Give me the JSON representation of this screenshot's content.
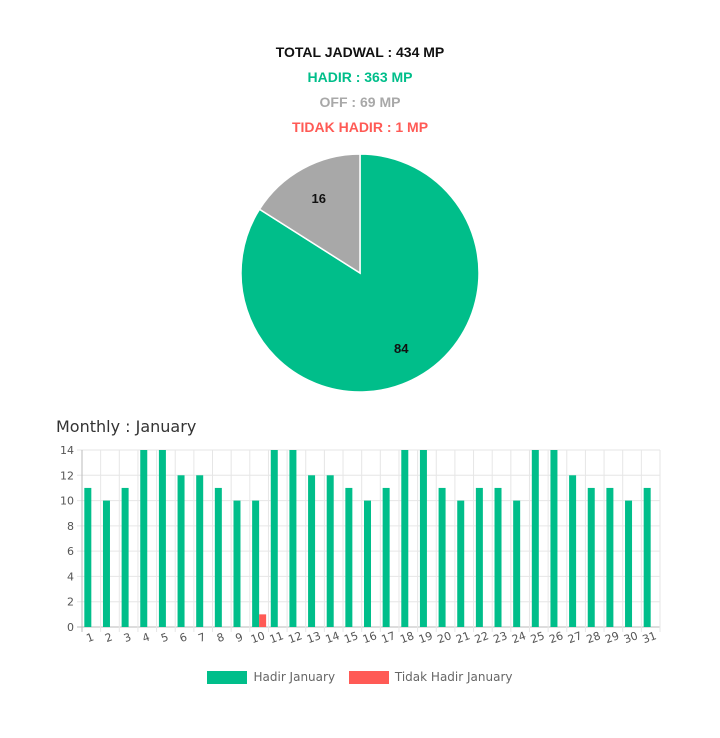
{
  "summary": {
    "total": "TOTAL JADWAL : 434 MP",
    "hadir": "HADIR : 363 MP",
    "off": "OFF : 69 MP",
    "tidak_hadir": "TIDAK HADIR : 1 MP"
  },
  "monthly_title": "Monthly : January",
  "colors": {
    "hadir": "#00be8a",
    "off": "#a8a8a8",
    "tidak_hadir": "#ff5a55"
  },
  "chart_data": [
    {
      "type": "pie",
      "slices": [
        {
          "label": "84",
          "value": 84,
          "color": "#00be8a"
        },
        {
          "label": "16",
          "value": 16,
          "color": "#a8a8a8"
        }
      ]
    },
    {
      "type": "bar",
      "categories": [
        "1",
        "2",
        "3",
        "4",
        "5",
        "6",
        "7",
        "8",
        "9",
        "10",
        "11",
        "12",
        "13",
        "14",
        "15",
        "16",
        "17",
        "18",
        "19",
        "20",
        "21",
        "22",
        "23",
        "24",
        "25",
        "26",
        "27",
        "28",
        "29",
        "30",
        "31"
      ],
      "series": [
        {
          "name": "Hadir January",
          "color": "#00be8a",
          "values": [
            11,
            10,
            11,
            14,
            14,
            12,
            12,
            11,
            10,
            10,
            14,
            14,
            12,
            12,
            11,
            10,
            11,
            14,
            14,
            11,
            10,
            11,
            11,
            10,
            14,
            14,
            12,
            11,
            11,
            10,
            11
          ]
        },
        {
          "name": "Tidak Hadir January",
          "color": "#ff5a55",
          "values": [
            0,
            0,
            0,
            0,
            0,
            0,
            0,
            0,
            0,
            1,
            0,
            0,
            0,
            0,
            0,
            0,
            0,
            0,
            0,
            0,
            0,
            0,
            0,
            0,
            0,
            0,
            0,
            0,
            0,
            0,
            0
          ]
        }
      ],
      "ylim": [
        0,
        14
      ],
      "yticks": [
        0,
        2,
        4,
        6,
        8,
        10,
        12,
        14
      ],
      "grid": true,
      "legend": "bottom"
    }
  ]
}
